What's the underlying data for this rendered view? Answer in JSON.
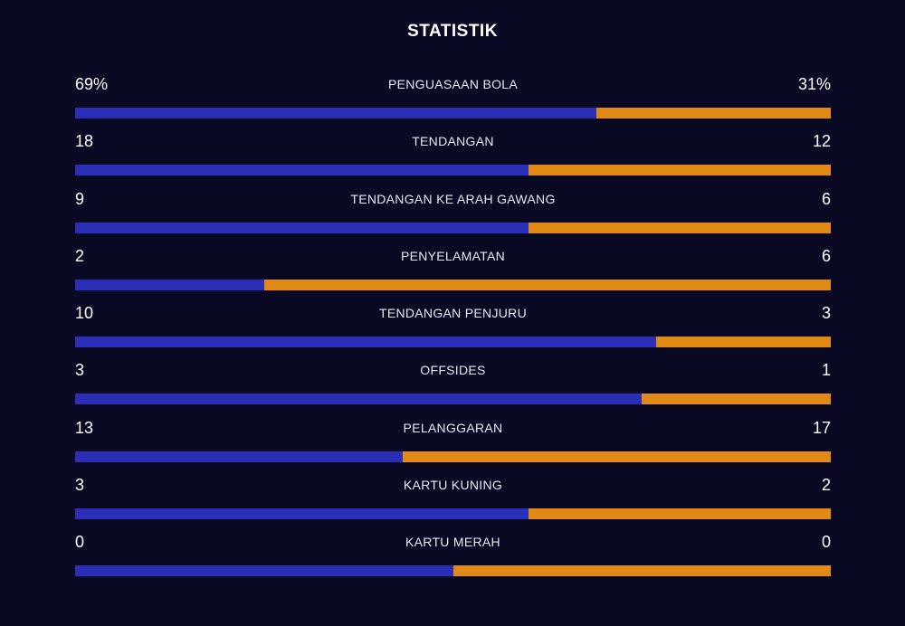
{
  "title": "STATISTIK",
  "colors": {
    "background": "#0a0924",
    "home": "#2b2fb8",
    "away": "#e08a15"
  },
  "stats": [
    {
      "label": "PENGUASAAN BOLA",
      "home": "69%",
      "away": "31%",
      "home_share": 0.69
    },
    {
      "label": "TENDANGAN",
      "home": "18",
      "away": "12",
      "home_share": 0.6
    },
    {
      "label": "TENDANGAN KE ARAH GAWANG",
      "home": "9",
      "away": "6",
      "home_share": 0.6
    },
    {
      "label": "PENYELAMATAN",
      "home": "2",
      "away": "6",
      "home_share": 0.25
    },
    {
      "label": "TENDANGAN PENJURU",
      "home": "10",
      "away": "3",
      "home_share": 0.769
    },
    {
      "label": "OFFSIDES",
      "home": "3",
      "away": "1",
      "home_share": 0.75
    },
    {
      "label": "PELANGGARAN",
      "home": "13",
      "away": "17",
      "home_share": 0.433
    },
    {
      "label": "KARTU KUNING",
      "home": "3",
      "away": "2",
      "home_share": 0.6
    },
    {
      "label": "KARTU MERAH",
      "home": "0",
      "away": "0",
      "home_share": 0.5
    }
  ]
}
